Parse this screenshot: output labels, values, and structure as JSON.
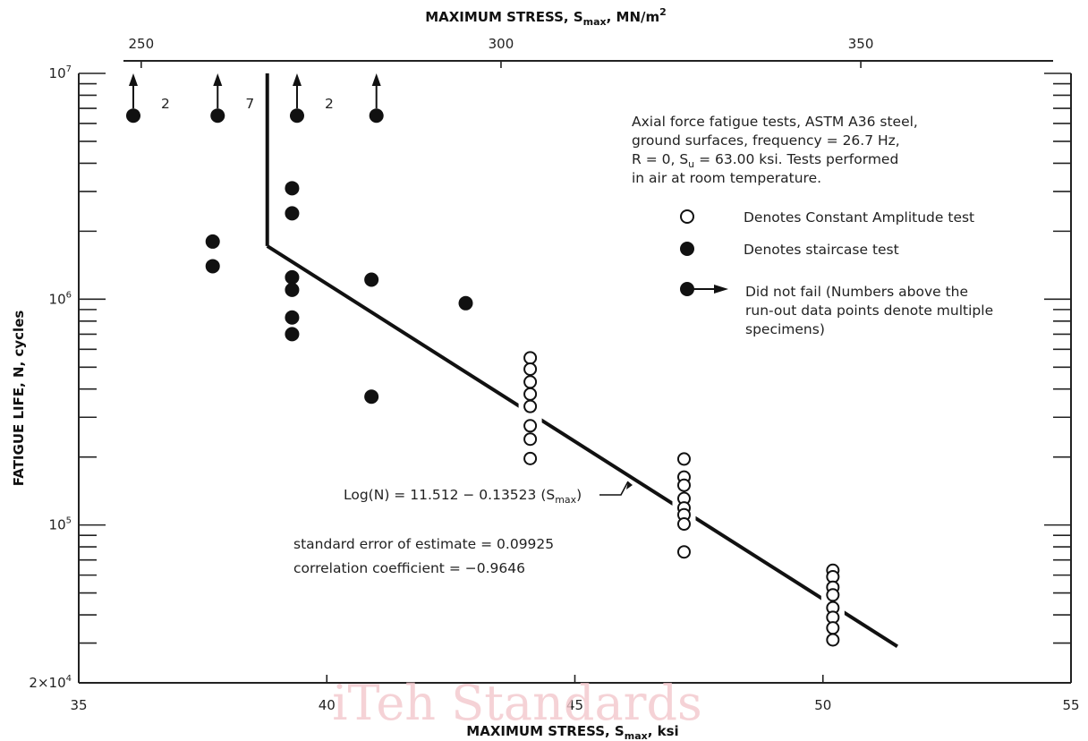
{
  "chart_data": {
    "type": "scatter",
    "xlabel": "MAXIMUM STRESS, S_max, ksi",
    "x2label": "MAXIMUM STRESS, S_max, MN/m²",
    "ylabel": "FATIGUE LIFE, N, cycles",
    "xlim": [
      35,
      55
    ],
    "x_ticks": [
      "35",
      "40",
      "45",
      "50",
      "55"
    ],
    "x2_ticks": [
      {
        "value": 250,
        "label": "250"
      },
      {
        "value": 300,
        "label": "300"
      },
      {
        "value": 350,
        "label": "350"
      }
    ],
    "ylim": [
      20000,
      10000000
    ],
    "y_scale": "log",
    "y_ticks": [
      {
        "value": 20000,
        "base": "2×10",
        "exp": "4"
      },
      {
        "value": 100000,
        "base": "10",
        "exp": "5"
      },
      {
        "value": 1000000,
        "base": "10",
        "exp": "6"
      },
      {
        "value": 10000000,
        "base": "10",
        "exp": "7"
      }
    ],
    "series": [
      {
        "name": "Denotes Constant Amplitude test",
        "marker": "open-circle",
        "points": [
          [
            44.1,
            550000
          ],
          [
            44.1,
            490000
          ],
          [
            44.1,
            430000
          ],
          [
            44.1,
            380000
          ],
          [
            44.1,
            335000
          ],
          [
            44.1,
            275000
          ],
          [
            44.1,
            240000
          ],
          [
            44.1,
            197000
          ],
          [
            47.2,
            196000
          ],
          [
            47.2,
            163000
          ],
          [
            47.2,
            150000
          ],
          [
            47.2,
            131000
          ],
          [
            47.2,
            119000
          ],
          [
            47.2,
            111000
          ],
          [
            47.2,
            101000
          ],
          [
            47.2,
            76000
          ],
          [
            50.2,
            63000
          ],
          [
            50.2,
            59000
          ],
          [
            50.2,
            53000
          ],
          [
            50.2,
            49000
          ],
          [
            50.2,
            43000
          ],
          [
            50.2,
            39000
          ],
          [
            50.2,
            35000
          ],
          [
            50.2,
            31000
          ]
        ]
      },
      {
        "name": "Denotes staircase test",
        "marker": "filled-circle",
        "points": [
          [
            37.7,
            1800000
          ],
          [
            37.7,
            1400000
          ],
          [
            39.3,
            3100000
          ],
          [
            39.3,
            2400000
          ],
          [
            39.3,
            1250000
          ],
          [
            39.3,
            1100000
          ],
          [
            39.3,
            830000
          ],
          [
            39.3,
            700000
          ],
          [
            40.9,
            1220000
          ],
          [
            40.9,
            370000
          ],
          [
            42.8,
            960000
          ]
        ]
      },
      {
        "name": "Did not fail (Numbers above the run-out data points denote multiple specimens)",
        "marker": "filled-circle-arrow",
        "points": [
          [
            36.1,
            6500000
          ],
          [
            37.8,
            6500000
          ],
          [
            39.4,
            6500000
          ],
          [
            41.0,
            6500000
          ]
        ],
        "multiplicity_labels": [
          {
            "x": 36.1,
            "label": "2"
          },
          {
            "x": 37.8,
            "label": "7"
          },
          {
            "x": 39.4,
            "label": "2"
          }
        ]
      }
    ],
    "fit_line": {
      "label": "Log(N) = 11.512 − 0.13523 (S_max)",
      "knee": [
        38.8,
        1720000
      ],
      "vertical_top": [
        38.8,
        10000000
      ],
      "end": [
        51.5,
        29000
      ]
    },
    "legend": [
      {
        "marker": "open-circle",
        "label": "Denotes Constant Amplitude test"
      },
      {
        "marker": "filled-circle",
        "label": "Denotes staircase test"
      },
      {
        "marker": "filled-circle-arrow",
        "label_lines": [
          "Did not fail (Numbers above the",
          "  run-out data points denote multiple",
          "  specimens)"
        ]
      }
    ],
    "annotation_lines": [
      "Axial force fatigue tests, ASTM A36 steel,",
      "ground surfaces, frequency = 26.7 Hz,",
      "R = 0, S_u = 63.00 ksi. Tests performed",
      "in air at room temperature."
    ],
    "stats_lines": [
      "standard error of estimate = 0.09925",
      "correlation coefficient = −0.9646"
    ]
  },
  "watermark": "iTeh Standards"
}
